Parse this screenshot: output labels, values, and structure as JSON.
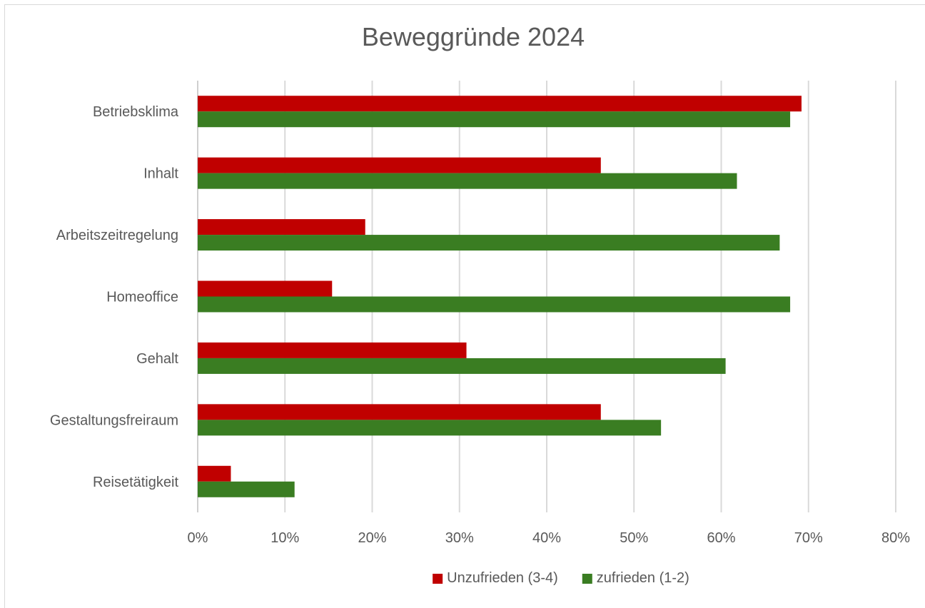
{
  "chart_data": {
    "type": "bar",
    "orientation": "horizontal",
    "title": "Beweggründe 2024",
    "xlabel": "",
    "ylabel": "",
    "categories": [
      "Betriebsklima",
      "Inhalt",
      "Arbeitszeitregelung",
      "Homeoffice",
      "Gehalt",
      "Gestaltungsfreiraum",
      "Reisetätigkeit"
    ],
    "series": [
      {
        "name": "Unzufrieden (3-4)",
        "color": "#c00000",
        "values": [
          69.2,
          46.2,
          19.2,
          15.4,
          30.8,
          46.2,
          3.8
        ]
      },
      {
        "name": "zufrieden (1-2)",
        "color": "#3a7d22",
        "values": [
          67.9,
          61.8,
          66.7,
          67.9,
          60.5,
          53.1,
          11.1
        ]
      }
    ],
    "xlim": [
      0,
      80
    ],
    "x_ticks": [
      "0%",
      "10%",
      "20%",
      "30%",
      "40%",
      "50%",
      "60%",
      "70%",
      "80%"
    ],
    "grid": true,
    "legend_position": "bottom"
  }
}
